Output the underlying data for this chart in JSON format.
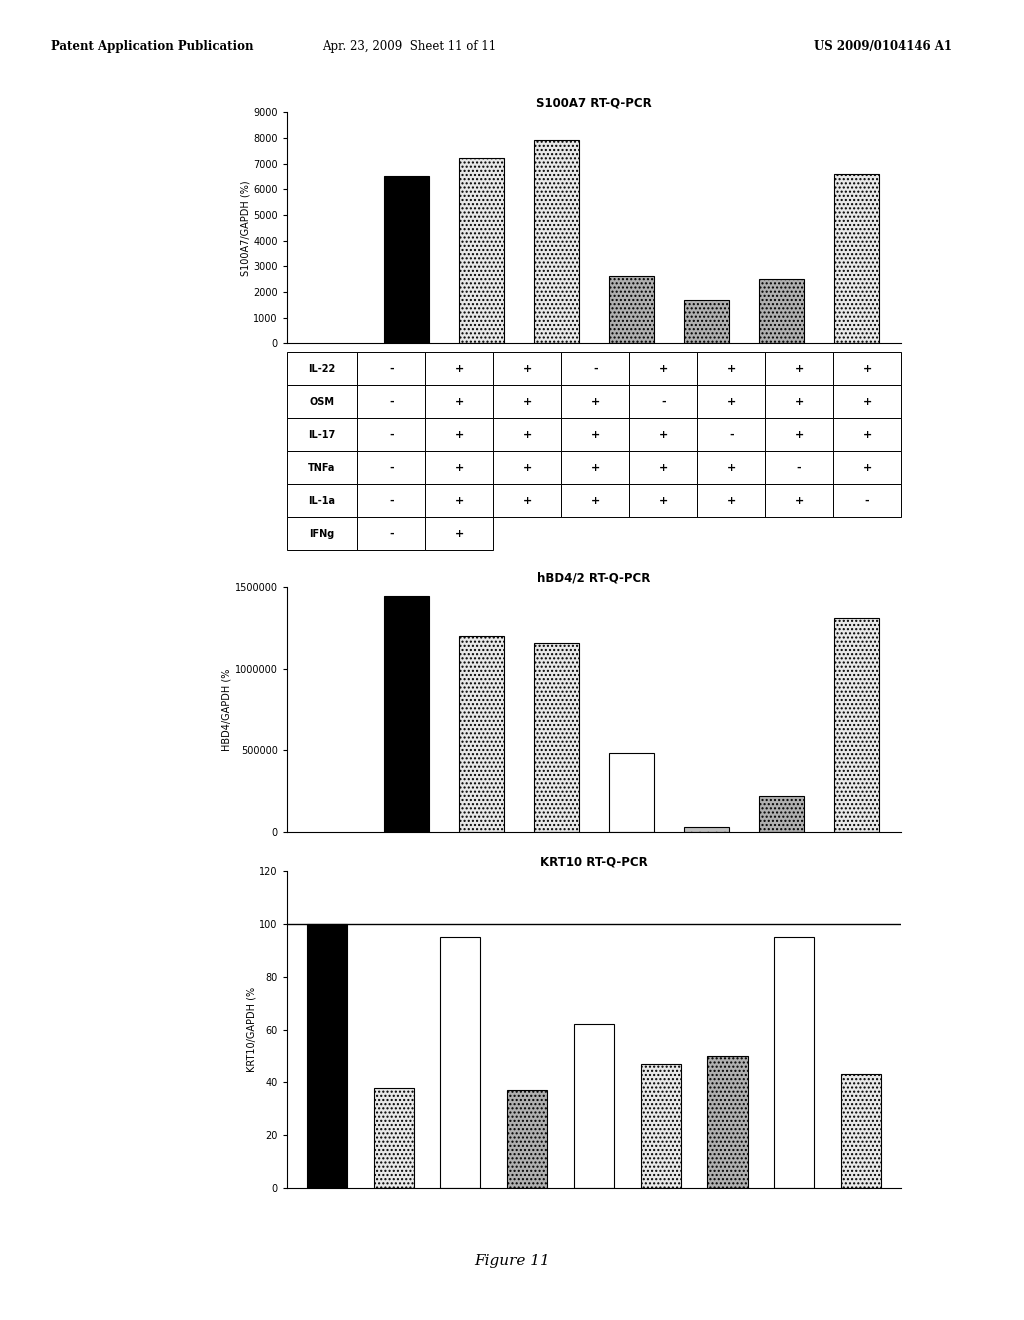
{
  "chart1": {
    "title": "S100A7 RT-Q-PCR",
    "ylabel": "S100A7/GAPDH (%)",
    "ylim": [
      0,
      9000
    ],
    "yticks": [
      0,
      1000,
      2000,
      3000,
      4000,
      5000,
      6000,
      7000,
      8000,
      9000
    ],
    "values": [
      0,
      6500,
      7200,
      7900,
      2600,
      1700,
      2500,
      6600
    ],
    "bar_styles": [
      "none",
      "black",
      "speckle_white",
      "speckle_white",
      "speckle_grey",
      "speckle_grey",
      "speckle_grey",
      "speckle_white"
    ]
  },
  "chart2": {
    "title": "hBD4/2 RT-Q-PCR",
    "ylabel": "HBD4/GAPDH (%",
    "ylim": [
      0,
      1500000
    ],
    "yticks": [
      0,
      500000,
      1000000,
      1500000
    ],
    "values": [
      0,
      1450000,
      1200000,
      1160000,
      480000,
      30000,
      220000,
      1310000
    ],
    "bar_styles": [
      "none",
      "black",
      "speckle_white",
      "speckle_white",
      "white_empty",
      "speckle_grey_small",
      "speckle_grey",
      "speckle_white"
    ]
  },
  "chart3": {
    "title": "KRT10 RT-Q-PCR",
    "ylabel": "KRT10/GAPDH (%",
    "ylim": [
      0,
      120
    ],
    "yticks": [
      0,
      20,
      40,
      60,
      80,
      100,
      120
    ],
    "values": [
      100,
      38,
      95,
      37,
      62,
      47,
      50,
      95,
      43
    ],
    "bar_styles": [
      "black",
      "speckle_white",
      "white_empty",
      "speckle_grey",
      "white_empty",
      "speckle_white",
      "speckle_grey",
      "white_empty",
      "speckle_white"
    ],
    "hline": 100
  },
  "table": {
    "rows": [
      "IL-22",
      "OSM",
      "IL-17",
      "TNFa",
      "IL-1a",
      "IFNg"
    ],
    "cols": [
      [
        "-",
        "+",
        "+",
        "-",
        "+",
        "+",
        "+",
        "+"
      ],
      [
        "-",
        "+",
        "+",
        "+",
        "-",
        "+",
        "+",
        "+"
      ],
      [
        "-",
        "+",
        "+",
        "+",
        "+",
        "-",
        "+",
        "+"
      ],
      [
        "-",
        "+",
        "+",
        "+",
        "+",
        "+",
        "-",
        "+"
      ],
      [
        "-",
        "+",
        "+",
        "+",
        "+",
        "+",
        "+",
        "-"
      ],
      [
        "-",
        "+",
        "",
        "",
        "",
        "",
        "",
        ""
      ]
    ]
  },
  "header_left": "Patent Application Publication",
  "header_mid": "Apr. 23, 2009  Sheet 11 of 11",
  "header_right": "US 2009/0104146 A1",
  "figure_label": "Figure 11",
  "background_color": "#ffffff"
}
